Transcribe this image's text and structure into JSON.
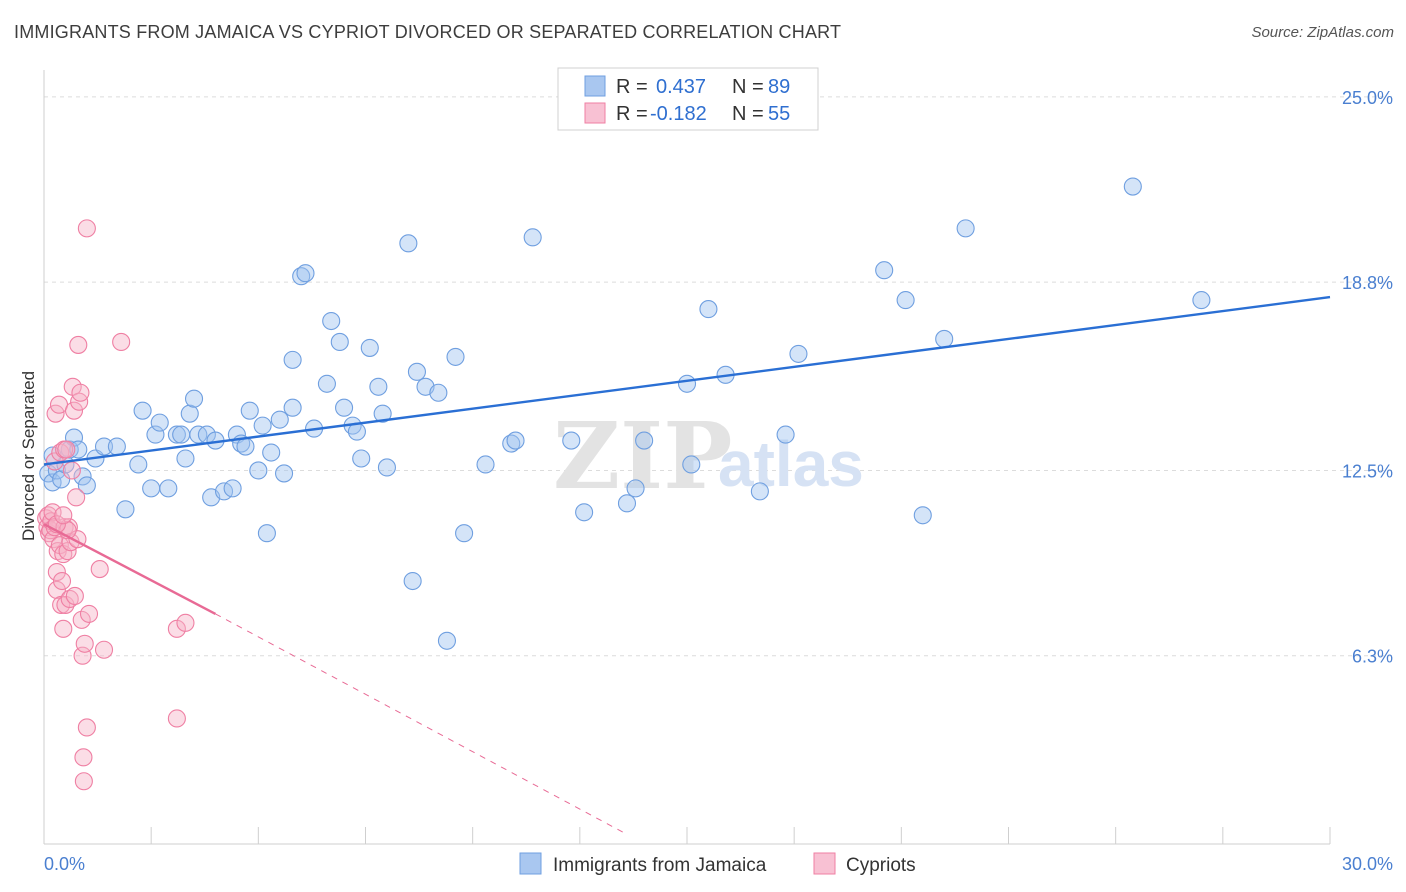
{
  "title": "IMMIGRANTS FROM JAMAICA VS CYPRIOT DIVORCED OR SEPARATED CORRELATION CHART",
  "source": "Source: ZipAtlas.com",
  "watermark": {
    "zip": "ZIP",
    "atlas": "atlas"
  },
  "colors": {
    "blue": "#6f9fe0",
    "blue_fill": "rgba(160,196,240,0.45)",
    "blue_line": "#2a6fd4",
    "pink": "#ef7fa3",
    "pink_fill": "rgba(246,180,200,0.45)",
    "pink_line": "#e86a95",
    "grid": "#dcdcdc",
    "tick": "#4a7fd0"
  },
  "legend": {
    "rows": [
      {
        "r_label": "R =",
        "r_value": "0.437",
        "n_label": "N =",
        "n_value": "89"
      },
      {
        "r_label": "R =",
        "r_value": "-0.182",
        "n_label": "N =",
        "n_value": "55"
      }
    ]
  },
  "bottom_legend": [
    "Immigrants from Jamaica",
    "Cypriots"
  ],
  "chart_data": {
    "type": "scatter",
    "xlabel": "",
    "ylabel": "Divorced or Separated",
    "xlim": [
      0,
      30
    ],
    "ylim": [
      0,
      25.9
    ],
    "x_tick_labels": [
      "0.0%",
      "30.0%"
    ],
    "y_ticks": [
      6.3,
      12.5,
      18.8,
      25.0
    ],
    "y_tick_labels": [
      "6.3%",
      "12.5%",
      "18.8%",
      "25.0%"
    ],
    "grid": true,
    "legend_position": "top-center",
    "series": [
      {
        "name": "Immigrants from Jamaica",
        "points": [
          [
            0.1,
            12.4
          ],
          [
            0.2,
            12.1
          ],
          [
            0.3,
            12.5
          ],
          [
            0.4,
            12.2
          ],
          [
            0.5,
            12.7
          ],
          [
            0.6,
            13.2
          ],
          [
            0.7,
            13.6
          ],
          [
            0.8,
            13.2
          ],
          [
            0.9,
            12.3
          ],
          [
            1.0,
            12.0
          ],
          [
            1.2,
            12.9
          ],
          [
            1.4,
            13.3
          ],
          [
            1.7,
            13.3
          ],
          [
            1.9,
            11.2
          ],
          [
            2.2,
            12.7
          ],
          [
            2.3,
            14.5
          ],
          [
            2.5,
            11.9
          ],
          [
            2.6,
            13.7
          ],
          [
            2.7,
            14.1
          ],
          [
            2.9,
            11.9
          ],
          [
            3.1,
            13.7
          ],
          [
            3.2,
            13.7
          ],
          [
            3.3,
            12.9
          ],
          [
            3.4,
            14.4
          ],
          [
            3.5,
            14.9
          ],
          [
            3.6,
            13.7
          ],
          [
            3.8,
            13.7
          ],
          [
            3.9,
            11.6
          ],
          [
            4.0,
            13.5
          ],
          [
            4.2,
            11.8
          ],
          [
            4.4,
            11.9
          ],
          [
            4.5,
            13.7
          ],
          [
            4.6,
            13.4
          ],
          [
            4.7,
            13.3
          ],
          [
            4.8,
            14.5
          ],
          [
            5.0,
            12.5
          ],
          [
            5.1,
            14.0
          ],
          [
            5.2,
            10.4
          ],
          [
            5.3,
            13.1
          ],
          [
            5.5,
            14.2
          ],
          [
            5.6,
            12.4
          ],
          [
            5.8,
            14.6
          ],
          [
            5.8,
            16.2
          ],
          [
            6.0,
            19.0
          ],
          [
            6.1,
            19.1
          ],
          [
            6.3,
            13.9
          ],
          [
            6.6,
            15.4
          ],
          [
            6.7,
            17.5
          ],
          [
            6.9,
            16.8
          ],
          [
            7.0,
            14.6
          ],
          [
            7.2,
            14.0
          ],
          [
            7.3,
            13.8
          ],
          [
            7.4,
            12.9
          ],
          [
            7.6,
            16.6
          ],
          [
            7.8,
            15.3
          ],
          [
            7.9,
            14.4
          ],
          [
            8.0,
            12.6
          ],
          [
            8.5,
            20.1
          ],
          [
            8.6,
            8.8
          ],
          [
            8.7,
            15.8
          ],
          [
            8.9,
            15.3
          ],
          [
            9.2,
            15.1
          ],
          [
            9.4,
            6.8
          ],
          [
            9.6,
            16.3
          ],
          [
            9.8,
            10.4
          ],
          [
            10.3,
            12.7
          ],
          [
            10.9,
            13.4
          ],
          [
            11.0,
            13.5
          ],
          [
            11.4,
            20.3
          ],
          [
            12.3,
            13.5
          ],
          [
            12.6,
            11.1
          ],
          [
            13.6,
            11.4
          ],
          [
            13.8,
            11.9
          ],
          [
            14.0,
            13.5
          ],
          [
            15.0,
            15.4
          ],
          [
            15.1,
            12.7
          ],
          [
            15.5,
            17.9
          ],
          [
            15.9,
            15.7
          ],
          [
            16.7,
            11.8
          ],
          [
            17.3,
            13.7
          ],
          [
            17.6,
            16.4
          ],
          [
            19.6,
            19.2
          ],
          [
            20.1,
            18.2
          ],
          [
            20.5,
            11.0
          ],
          [
            21.0,
            16.9
          ],
          [
            21.5,
            20.6
          ],
          [
            25.4,
            22.0
          ],
          [
            27.0,
            18.2
          ],
          [
            0.2,
            13.0
          ]
        ]
      },
      {
        "name": "Cypriots",
        "points": [
          [
            0.05,
            10.9
          ],
          [
            0.08,
            10.6
          ],
          [
            0.1,
            11.0
          ],
          [
            0.12,
            10.4
          ],
          [
            0.15,
            10.5
          ],
          [
            0.17,
            10.8
          ],
          [
            0.2,
            11.1
          ],
          [
            0.22,
            10.2
          ],
          [
            0.25,
            10.6
          ],
          [
            0.25,
            12.8
          ],
          [
            0.27,
            14.4
          ],
          [
            0.3,
            9.1
          ],
          [
            0.3,
            8.5
          ],
          [
            0.32,
            9.8
          ],
          [
            0.35,
            14.7
          ],
          [
            0.37,
            10.0
          ],
          [
            0.38,
            13.1
          ],
          [
            0.4,
            8.0
          ],
          [
            0.42,
            8.8
          ],
          [
            0.45,
            7.2
          ],
          [
            0.45,
            9.7
          ],
          [
            0.47,
            13.2
          ],
          [
            0.48,
            10.6
          ],
          [
            0.5,
            8.0
          ],
          [
            0.52,
            13.2
          ],
          [
            0.55,
            9.8
          ],
          [
            0.58,
            10.6
          ],
          [
            0.6,
            8.2
          ],
          [
            0.62,
            10.1
          ],
          [
            0.65,
            12.5
          ],
          [
            0.67,
            15.3
          ],
          [
            0.7,
            14.5
          ],
          [
            0.72,
            8.3
          ],
          [
            0.75,
            11.6
          ],
          [
            0.78,
            10.2
          ],
          [
            0.8,
            16.7
          ],
          [
            0.82,
            14.8
          ],
          [
            0.85,
            15.1
          ],
          [
            0.88,
            7.5
          ],
          [
            0.9,
            6.3
          ],
          [
            0.92,
            2.9
          ],
          [
            0.93,
            2.1
          ],
          [
            0.95,
            6.7
          ],
          [
            1.0,
            20.6
          ],
          [
            1.0,
            3.9
          ],
          [
            1.05,
            7.7
          ],
          [
            1.3,
            9.2
          ],
          [
            1.4,
            6.5
          ],
          [
            1.8,
            16.8
          ],
          [
            3.1,
            4.2
          ],
          [
            3.1,
            7.2
          ],
          [
            3.3,
            7.4
          ],
          [
            0.55,
            10.5
          ],
          [
            0.3,
            10.7
          ],
          [
            0.45,
            11.0
          ]
        ]
      }
    ],
    "trend_lines": [
      {
        "series": "Immigrants from Jamaica",
        "from": [
          0,
          12.7
        ],
        "to": [
          30,
          18.3
        ],
        "style": "solid"
      },
      {
        "series": "Cypriots",
        "from": [
          0,
          10.7
        ],
        "to": [
          4,
          7.7
        ],
        "style": "solid"
      },
      {
        "series": "Cypriots",
        "from": [
          4,
          7.7
        ],
        "to": [
          13.5,
          0.4
        ],
        "style": "dashed"
      }
    ]
  }
}
